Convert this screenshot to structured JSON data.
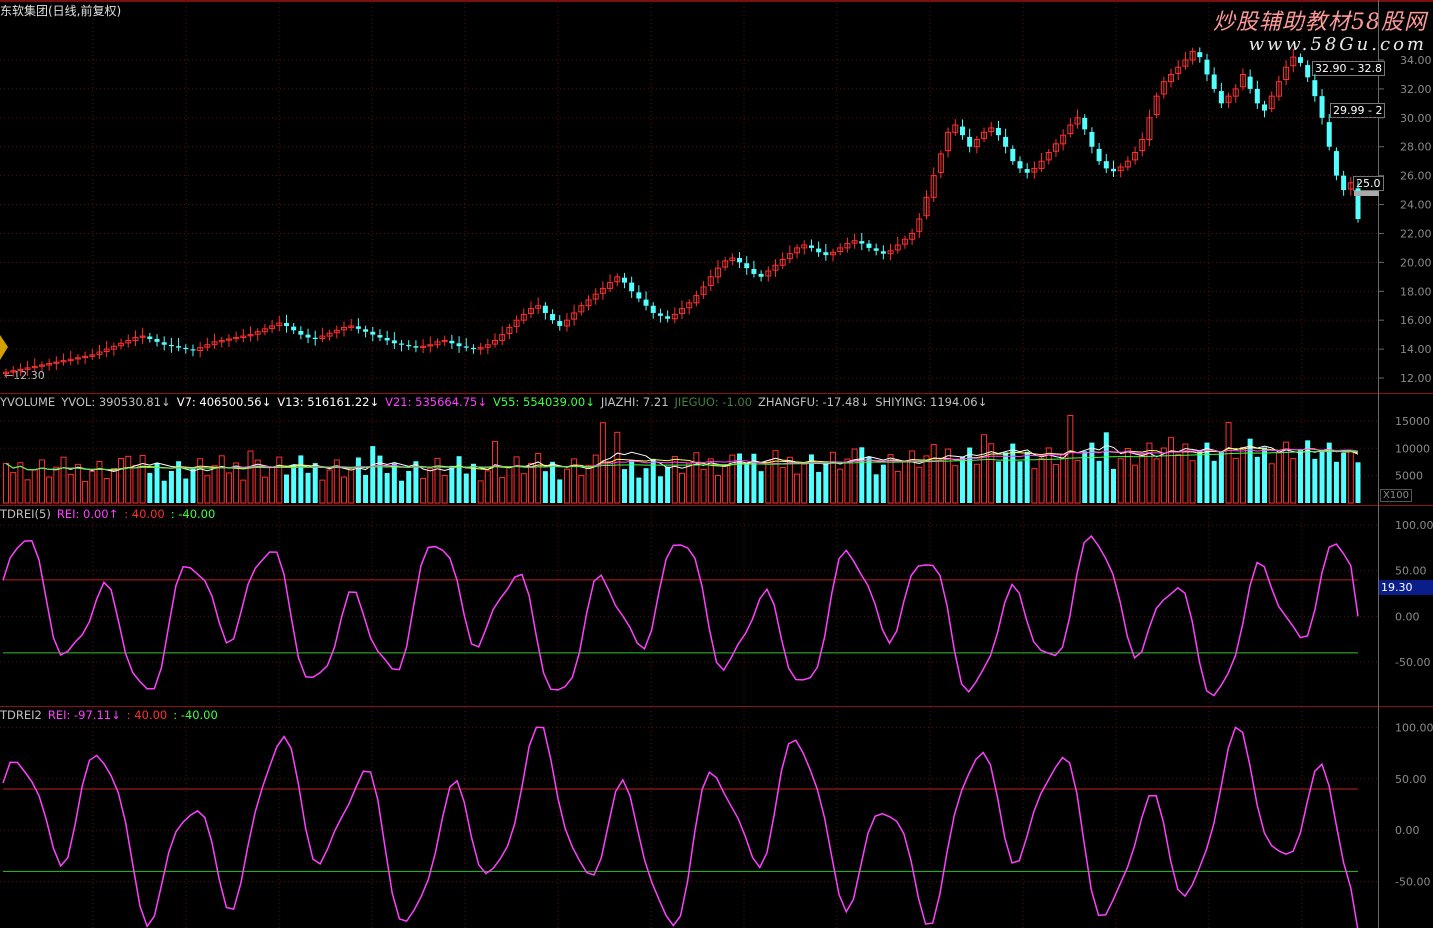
{
  "window": {
    "title": "东软集团(日线,前复权)"
  },
  "brand": {
    "line1": "炒股辅助教材58股网",
    "line2": "www.58Gu.com"
  },
  "price_pane": {
    "y_ticks": [
      "34.00",
      "32.00",
      "30.00",
      "28.00",
      "26.00",
      "24.00",
      "22.00",
      "20.00",
      "18.00",
      "16.00",
      "14.00",
      "12.00"
    ],
    "low_label": "12.30",
    "callouts": [
      "32.90 - 32.8",
      "29.99 - 2",
      "25.0"
    ],
    "colors": {
      "up": "#ff3030",
      "down": "#54ffff"
    }
  },
  "volume_pane": {
    "legend": [
      {
        "text": "YVOLUME",
        "color": "#c0c0c0"
      },
      {
        "text": "YVOL: 390530.81↓",
        "color": "#c0c0c0"
      },
      {
        "text": "V7: 406500.56↓",
        "color": "#ffffff"
      },
      {
        "text": "V13: 516161.22↓",
        "color": "#ffffff"
      },
      {
        "text": "V21: 535664.75↓",
        "color": "#ff40ff"
      },
      {
        "text": "V55: 554039.00↓",
        "color": "#40ff40"
      },
      {
        "text": "JIAZHI: 7.21",
        "color": "#c0c0c0"
      },
      {
        "text": "JIEGUO: -1.00",
        "color": "#408040"
      },
      {
        "text": "ZHANGFU: -17.48↓",
        "color": "#c0c0c0"
      },
      {
        "text": "SHIYING: 1194.06↓",
        "color": "#c0c0c0"
      }
    ],
    "y_ticks": [
      "15000",
      "10000",
      "5000"
    ],
    "unit": "X100"
  },
  "rei1_pane": {
    "legend": [
      {
        "text": "TDREI(5)",
        "color": "#c0c0c0"
      },
      {
        "text": "REI: 0.00↑",
        "color": "#ff40ff"
      },
      {
        "text": ": 40.00",
        "color": "#ff3030"
      },
      {
        "text": ": -40.00",
        "color": "#40ff40"
      }
    ],
    "y_ticks": [
      "100.00",
      "50.00",
      "0.00",
      "-50.00"
    ],
    "current": "19.30"
  },
  "rei2_pane": {
    "legend": [
      {
        "text": "TDREI2",
        "color": "#c0c0c0"
      },
      {
        "text": "REI: -97.11↓",
        "color": "#ff40ff"
      },
      {
        "text": ": 40.00",
        "color": "#ff3030"
      },
      {
        "text": ": -40.00",
        "color": "#40ff40"
      }
    ],
    "y_ticks": [
      "100.00",
      "50.00",
      "0.00",
      "-50.00"
    ]
  },
  "chart_data": {
    "type": "candlestick",
    "title": "东软集团(日线,前复权)",
    "ylim": [
      11.5,
      35.2
    ],
    "candles_close": [
      12.4,
      12.5,
      12.6,
      12.7,
      12.8,
      12.9,
      13.0,
      13.1,
      13.2,
      13.3,
      13.4,
      13.5,
      13.6,
      13.8,
      14.0,
      14.2,
      14.4,
      14.6,
      14.8,
      14.9,
      14.7,
      14.5,
      14.3,
      14.2,
      14.1,
      14.0,
      13.9,
      14.1,
      14.3,
      14.5,
      14.6,
      14.7,
      14.8,
      14.9,
      15.0,
      15.2,
      15.4,
      15.6,
      15.8,
      15.6,
      15.3,
      15.0,
      14.8,
      14.7,
      14.9,
      15.1,
      15.3,
      15.5,
      15.6,
      15.4,
      15.2,
      15.0,
      14.8,
      14.6,
      14.4,
      14.3,
      14.2,
      14.1,
      14.2,
      14.3,
      14.5,
      14.6,
      14.4,
      14.2,
      14.1,
      14.0,
      14.1,
      14.3,
      14.6,
      15.0,
      15.5,
      16.0,
      16.4,
      16.8,
      17.0,
      16.5,
      16.0,
      15.6,
      16.0,
      16.5,
      17.0,
      17.4,
      17.8,
      18.2,
      18.6,
      19.0,
      18.6,
      18.0,
      17.5,
      17.0,
      16.5,
      16.3,
      16.1,
      16.4,
      16.8,
      17.2,
      17.7,
      18.3,
      19.0,
      19.6,
      20.1,
      20.3,
      20.0,
      19.6,
      19.2,
      19.0,
      19.4,
      19.8,
      20.2,
      20.6,
      21.0,
      21.2,
      21.0,
      20.7,
      20.5,
      20.7,
      21.0,
      21.3,
      21.5,
      21.3,
      21.0,
      20.8,
      20.6,
      20.8,
      21.2,
      21.6,
      22.0,
      23.0,
      24.5,
      26.0,
      27.5,
      29.0,
      29.5,
      28.8,
      28.0,
      28.5,
      29.0,
      29.3,
      28.8,
      28.0,
      27.0,
      26.5,
      26.2,
      26.5,
      27.0,
      27.6,
      28.2,
      28.8,
      29.5,
      30.0,
      29.2,
      28.0,
      27.0,
      26.5,
      26.3,
      26.6,
      27.0,
      27.6,
      28.5,
      30.0,
      31.5,
      32.5,
      33.0,
      33.5,
      34.0,
      34.6,
      34.2,
      33.0,
      32.0,
      31.0,
      31.5,
      32.0,
      33.0,
      32.0,
      31.0,
      30.5,
      31.5,
      32.5,
      33.5,
      34.2,
      33.8,
      32.8,
      31.5,
      30.0,
      28.0,
      26.0,
      25.0,
      25.5,
      23.0
    ]
  }
}
